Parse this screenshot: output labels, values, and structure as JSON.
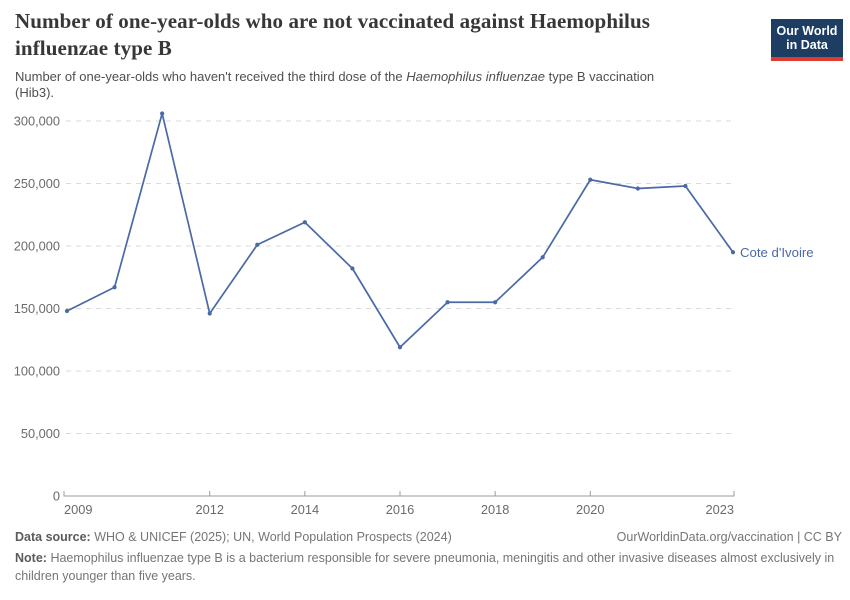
{
  "header": {
    "title": "Number of one-year-olds who are not vaccinated against Haemophilus influenzae type B",
    "subtitle_prefix": "Number of one-year-olds who haven't received the third dose of the ",
    "subtitle_italic": "Haemophilus influenzae",
    "subtitle_suffix": " type B vaccination (Hib3).",
    "logo_line1": "Our World",
    "logo_line2": "in Data",
    "logo_bg_color": "#1d3d63",
    "logo_bar_color": "#dc3b32"
  },
  "chart_data": {
    "type": "line",
    "title": "Number of one-year-olds who are not vaccinated against Haemophilus influenzae type B",
    "x": [
      2009,
      2010,
      2011,
      2012,
      2013,
      2014,
      2015,
      2016,
      2017,
      2018,
      2019,
      2020,
      2021,
      2022,
      2023
    ],
    "series": [
      {
        "name": "Cote d'Ivoire",
        "color": "#4a6aa5",
        "values": [
          148000,
          167000,
          306000,
          146000,
          201000,
          219000,
          182000,
          119000,
          155000,
          155000,
          191000,
          253000,
          246000,
          248000,
          195000
        ]
      }
    ],
    "xlim": [
      2009,
      2023
    ],
    "ylim": [
      0,
      300000
    ],
    "x_tick_years": [
      2009,
      2012,
      2014,
      2016,
      2018,
      2020,
      2023
    ],
    "x_tick_labels": [
      "2009",
      "2012",
      "2014",
      "2016",
      "2018",
      "2020",
      "2023"
    ],
    "y_tick_values": [
      0,
      50000,
      100000,
      150000,
      200000,
      250000,
      300000
    ],
    "y_tick_labels": [
      "0",
      "50,000",
      "100,000",
      "150,000",
      "200,000",
      "250,000",
      "300,000"
    ],
    "grid": "horizontal-dashed",
    "legend_position": "end-of-line-label",
    "end_label": "Cote d'Ivoire",
    "colors": {
      "line": "#4a6aa5",
      "grid": "#dadada",
      "axis": "#9b9b9b",
      "tick_text": "#6b6b6b",
      "end_label": "#4a6aa5"
    }
  },
  "footer": {
    "data_source_label": "Data source:",
    "data_source_value": "WHO & UNICEF (2025); UN, World Population Prospects (2024)",
    "link_text": "OurWorldinData.org/vaccination | CC BY",
    "note_label": "Note:",
    "note_value": "Haemophilus influenzae type B is a bacterium responsible for severe pneumonia, meningitis and other invasive diseases almost exclusively in children younger than five years."
  }
}
